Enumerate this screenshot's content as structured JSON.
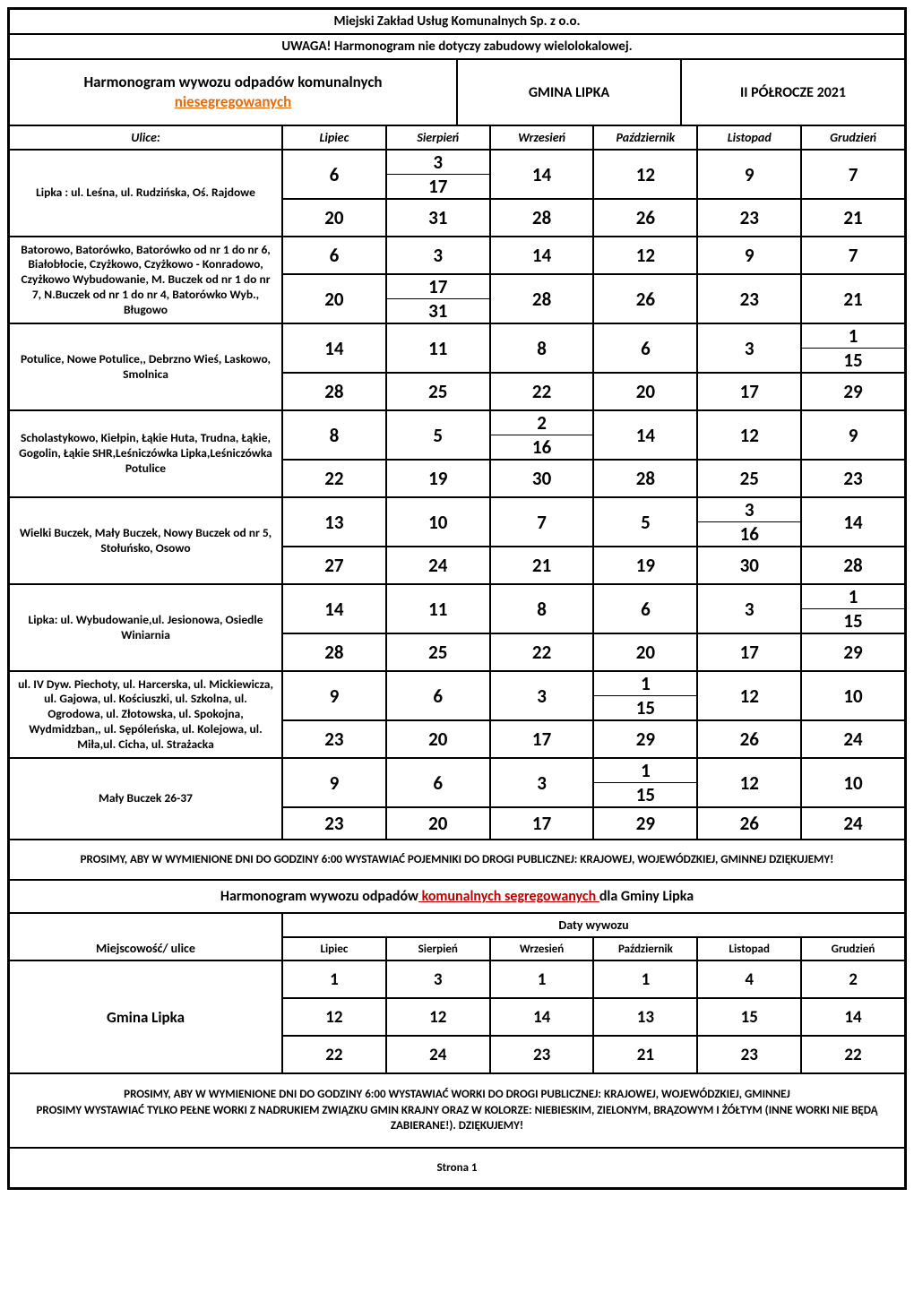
{
  "company": "Miejski Zakład Usług Komunalnych Sp. z o.o.",
  "warning": "UWAGA! Harmonogram nie dotyczy zabudowy wielolokalowej.",
  "header": {
    "title_l1": "Harmonogram wywozu odpadów komunalnych",
    "title_l2": "niesegregowanych",
    "gmina": "GMINA LIPKA",
    "period": "II PÓŁROCZE 2021"
  },
  "columns": {
    "ulice": "Ulice:",
    "months": [
      "Lipiec",
      "Sierpień",
      "Wrzesień",
      "Październik",
      "Listopad",
      "Grudzień"
    ]
  },
  "blocks": [
    {
      "street": "Lipka : ul. Leśna, ul. Rudzińska, Oś. Rajdowe",
      "rows": [
        {
          "cells": [
            [
              "6"
            ],
            [
              "3",
              "17"
            ],
            [
              "14"
            ],
            [
              "12"
            ],
            [
              "9"
            ],
            [
              "7"
            ]
          ],
          "h": "h46"
        },
        {
          "cells": [
            [
              "20"
            ],
            [
              "31"
            ],
            [
              "28"
            ],
            [
              "26"
            ],
            [
              "23"
            ],
            [
              "21"
            ]
          ],
          "h": "h42"
        }
      ],
      "sierpien_merge_31_alone": true
    },
    {
      "street": "Batorowo, Batorówko, Batorówko od nr 1 do nr 6, Białobłocie, Czyżkowo, Czyżkowo - Konradowo, Czyżkowo Wybudowanie, M. Buczek od nr 1 do nr 7,  N.Buczek od nr 1 do nr 4, Batorówko Wyb., Bługowo",
      "rows": [
        {
          "cells": [
            [
              "6"
            ],
            [
              "3"
            ],
            [
              "14"
            ],
            [
              "12"
            ],
            [
              "9"
            ],
            [
              "7"
            ]
          ],
          "h": "h42"
        },
        {
          "cells": [
            [
              "20"
            ],
            [
              "17",
              "31"
            ],
            [
              "28"
            ],
            [
              "26"
            ],
            [
              "23"
            ],
            [
              "21"
            ]
          ],
          "h": "h46"
        }
      ],
      "sierpien_top_3_alone": true
    },
    {
      "street": "Potulice, Nowe Potulice,, Debrzno Wieś, Laskowo, Smolnica",
      "rows": [
        {
          "cells": [
            [
              "14"
            ],
            [
              "11"
            ],
            [
              "8"
            ],
            [
              "6"
            ],
            [
              "3"
            ],
            [
              "1",
              "15"
            ]
          ],
          "h": "h46"
        },
        {
          "cells": [
            [
              "28"
            ],
            [
              "25"
            ],
            [
              "22"
            ],
            [
              "20"
            ],
            [
              "17"
            ],
            [
              "29"
            ]
          ],
          "h": "h42"
        }
      ]
    },
    {
      "street": "Scholastykowo, Kiełpin, Łąkie Huta, Trudna, Łąkie, Gogolin, Łąkie SHR,Leśniczówka Lipka,Leśniczówka Potulice",
      "rows": [
        {
          "cells": [
            [
              "8"
            ],
            [
              "5"
            ],
            [
              "2",
              "16"
            ],
            [
              "14"
            ],
            [
              "12"
            ],
            [
              "9"
            ]
          ],
          "h": "h46"
        },
        {
          "cells": [
            [
              "22"
            ],
            [
              "19"
            ],
            [
              "30"
            ],
            [
              "28"
            ],
            [
              "25"
            ],
            [
              "23"
            ]
          ],
          "h": "h42"
        }
      ],
      "wrzesien_bottom_30_alone": true
    },
    {
      "street": "Wielki Buczek, Mały Buczek, Nowy Buczek od nr 5, Stołuńsko, Osowo",
      "rows": [
        {
          "cells": [
            [
              "13"
            ],
            [
              "10"
            ],
            [
              "7"
            ],
            [
              "5"
            ],
            [
              "3",
              "16"
            ],
            [
              "14"
            ]
          ],
          "h": "h46"
        },
        {
          "cells": [
            [
              "27"
            ],
            [
              "24"
            ],
            [
              "21"
            ],
            [
              "19"
            ],
            [
              "30"
            ],
            [
              "28"
            ]
          ],
          "h": "h42"
        }
      ],
      "listopad_bottom_30_alone": true
    },
    {
      "street": "Lipka:  ul. Wybudowanie,ul. Jesionowa, Osiedle Winiarnia",
      "rows": [
        {
          "cells": [
            [
              "14"
            ],
            [
              "11"
            ],
            [
              "8"
            ],
            [
              "6"
            ],
            [
              "3"
            ],
            [
              "1",
              "15"
            ]
          ],
          "h": "h46"
        },
        {
          "cells": [
            [
              "28"
            ],
            [
              "25"
            ],
            [
              "22"
            ],
            [
              "20"
            ],
            [
              "17"
            ],
            [
              "29"
            ]
          ],
          "h": "h42"
        }
      ]
    },
    {
      "street": "ul. IV Dyw. Piechoty, ul. Harcerska, ul. Mickiewicza, ul. Gajowa, ul. Kościuszki, ul. Szkolna, ul. Ogrodowa, ul. Złotowska, ul. Spokojna, Wydmidzban,, ul. Sępóleńska, ul. Kolejowa, ul. Miła,ul. Cicha, ul. Strażacka",
      "rows": [
        {
          "cells": [
            [
              "9"
            ],
            [
              "6"
            ],
            [
              "3"
            ],
            [
              "1",
              "15"
            ],
            [
              "12"
            ],
            [
              "10"
            ]
          ],
          "h": "h46"
        },
        {
          "cells": [
            [
              "23"
            ],
            [
              "20"
            ],
            [
              "17"
            ],
            [
              "29"
            ],
            [
              "26"
            ],
            [
              "24"
            ]
          ],
          "h": "h42"
        }
      ],
      "pazdz_bottom_29_alone": true
    },
    {
      "street": "Mały Buczek 26-37",
      "rows": [
        {
          "cells": [
            [
              "9"
            ],
            [
              "6"
            ],
            [
              "3"
            ],
            [
              "1",
              "15"
            ],
            [
              "12"
            ],
            [
              "10"
            ]
          ],
          "h": "h36"
        },
        {
          "cells": [
            [
              "23"
            ],
            [
              "20"
            ],
            [
              "17"
            ],
            [
              "29"
            ],
            [
              "26"
            ],
            [
              "24"
            ]
          ],
          "h": "h36"
        }
      ],
      "pazdz_bottom_29_alone_b": true
    }
  ],
  "note1": "PROSIMY, ABY W WYMIENIONE DNI DO GODZINY 6:00 WYSTAWIAĆ POJEMNIKI DO DROGI PUBLICZNEJ: KRAJOWEJ, WOJEWÓDZKIEJ, GMINNEJ DZIĘKUJEMY!",
  "section2": {
    "title_pre": "Harmonogram wywozu odpadów",
    "title_red": " komunalnych segregowanych ",
    "title_post": "dla Gminy Lipka",
    "miejsc": "Miejscowość/ ulice",
    "daty": "Daty wywozu",
    "months": [
      "Lipiec",
      "Sierpień",
      "Wrzesień",
      "Październik",
      "Listopad",
      "Grudzień"
    ],
    "gmina_label": "Gmina Lipka",
    "rows": [
      [
        "1",
        "3",
        "1",
        "1",
        "4",
        "2"
      ],
      [
        "12",
        "12",
        "14",
        "13",
        "15",
        "14"
      ],
      [
        "22",
        "24",
        "23",
        "21",
        "23",
        "22"
      ]
    ]
  },
  "note2_l1": "PROSIMY, ABY W WYMIENIONE DNI DO GODZINY 6:00 WYSTAWIAĆ WORKI DO DROGI PUBLICZNEJ: KRAJOWEJ, WOJEWÓDZKIEJ, GMINNEJ",
  "note2_l2": "PROSIMY WYSTAWIAĆ TYLKO PEŁNE WORKI Z NADRUKIEM ZWIĄZKU GMIN KRAJNY ORAZ W KOLORZE: NIEBIESKIM, ZIELONYM, BRĄZOWYM I ŻÓŁTYM (INNE WORKI NIE BĘDĄ ZABIERANE!). DZIĘKUJEMY!",
  "page": "Strona 1",
  "colors": {
    "border": "#000000",
    "red": "#c00000",
    "orange": "#e46c0a",
    "bg": "#ffffff"
  }
}
